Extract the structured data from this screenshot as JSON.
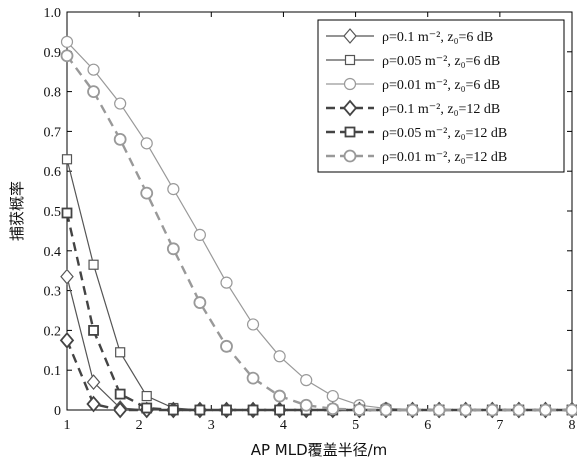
{
  "chart_data": {
    "type": "line",
    "title": "",
    "xlabel": "AP MLD覆盖半径/m",
    "ylabel": "捕获概率",
    "xlim": [
      1,
      8
    ],
    "ylim": [
      0,
      1.0
    ],
    "xticks": [
      1,
      2,
      3,
      4,
      5,
      6,
      7,
      8
    ],
    "xtick_labels": [
      "1",
      "2",
      "3",
      "4",
      "5",
      "6",
      "7",
      "8"
    ],
    "yticks": [
      0,
      0.1,
      0.2,
      0.3,
      0.4,
      0.5,
      0.6,
      0.7,
      0.8,
      0.9,
      1.0
    ],
    "ytick_labels": [
      "0",
      "0.1",
      "0.2",
      "0.3",
      "0.4",
      "0.5",
      "0.6",
      "0.7",
      "0.8",
      "0.9",
      "1.0"
    ],
    "grid": false,
    "legend_position": "top-right",
    "x": [
      1.0,
      1.368,
      1.737,
      2.105,
      2.474,
      2.842,
      3.211,
      3.579,
      3.947,
      4.316,
      4.684,
      5.053,
      5.421,
      5.789,
      6.158,
      6.526,
      6.895,
      7.263,
      7.632,
      8.0
    ],
    "series": [
      {
        "name": "ρ=0.1 m⁻², z₀=6 dB",
        "marker": "diamond",
        "dash": "solid",
        "color": "#555555",
        "values": [
          0.335,
          0.07,
          0.005,
          0,
          0,
          0,
          0,
          0,
          0,
          0,
          0,
          0,
          0,
          0,
          0,
          0,
          0,
          0,
          0,
          0
        ]
      },
      {
        "name": "ρ=0.05 m⁻², z₀=6 dB",
        "marker": "square",
        "dash": "solid",
        "color": "#555555",
        "values": [
          0.63,
          0.365,
          0.145,
          0.035,
          0.005,
          0,
          0,
          0,
          0,
          0,
          0,
          0,
          0,
          0,
          0,
          0,
          0,
          0,
          0,
          0
        ]
      },
      {
        "name": "ρ=0.01 m⁻², z₀=6 dB",
        "marker": "circle",
        "dash": "solid",
        "color": "#999999",
        "values": [
          0.925,
          0.855,
          0.77,
          0.67,
          0.555,
          0.44,
          0.32,
          0.215,
          0.135,
          0.075,
          0.035,
          0.012,
          0.004,
          0.001,
          0,
          0,
          0,
          0,
          0,
          0
        ]
      },
      {
        "name": "ρ=0.1 m⁻², z₀=12 dB",
        "marker": "diamond",
        "dash": "dashed",
        "color": "#444444",
        "values": [
          0.175,
          0.015,
          0.0,
          0,
          0,
          0,
          0,
          0,
          0,
          0,
          0,
          0,
          0,
          0,
          0,
          0,
          0,
          0,
          0,
          0
        ]
      },
      {
        "name": "ρ=0.05 m⁻², z₀=12 dB",
        "marker": "square",
        "dash": "dashed",
        "color": "#444444",
        "values": [
          0.495,
          0.2,
          0.04,
          0.005,
          0,
          0,
          0,
          0,
          0,
          0,
          0,
          0,
          0,
          0,
          0,
          0,
          0,
          0,
          0,
          0
        ]
      },
      {
        "name": "ρ=0.01 m⁻², z₀=12 dB",
        "marker": "circle",
        "dash": "dashed",
        "color": "#999999",
        "values": [
          0.89,
          0.8,
          0.68,
          0.545,
          0.405,
          0.27,
          0.16,
          0.08,
          0.035,
          0.012,
          0.003,
          0.001,
          0,
          0,
          0,
          0,
          0,
          0,
          0,
          0
        ]
      }
    ]
  }
}
